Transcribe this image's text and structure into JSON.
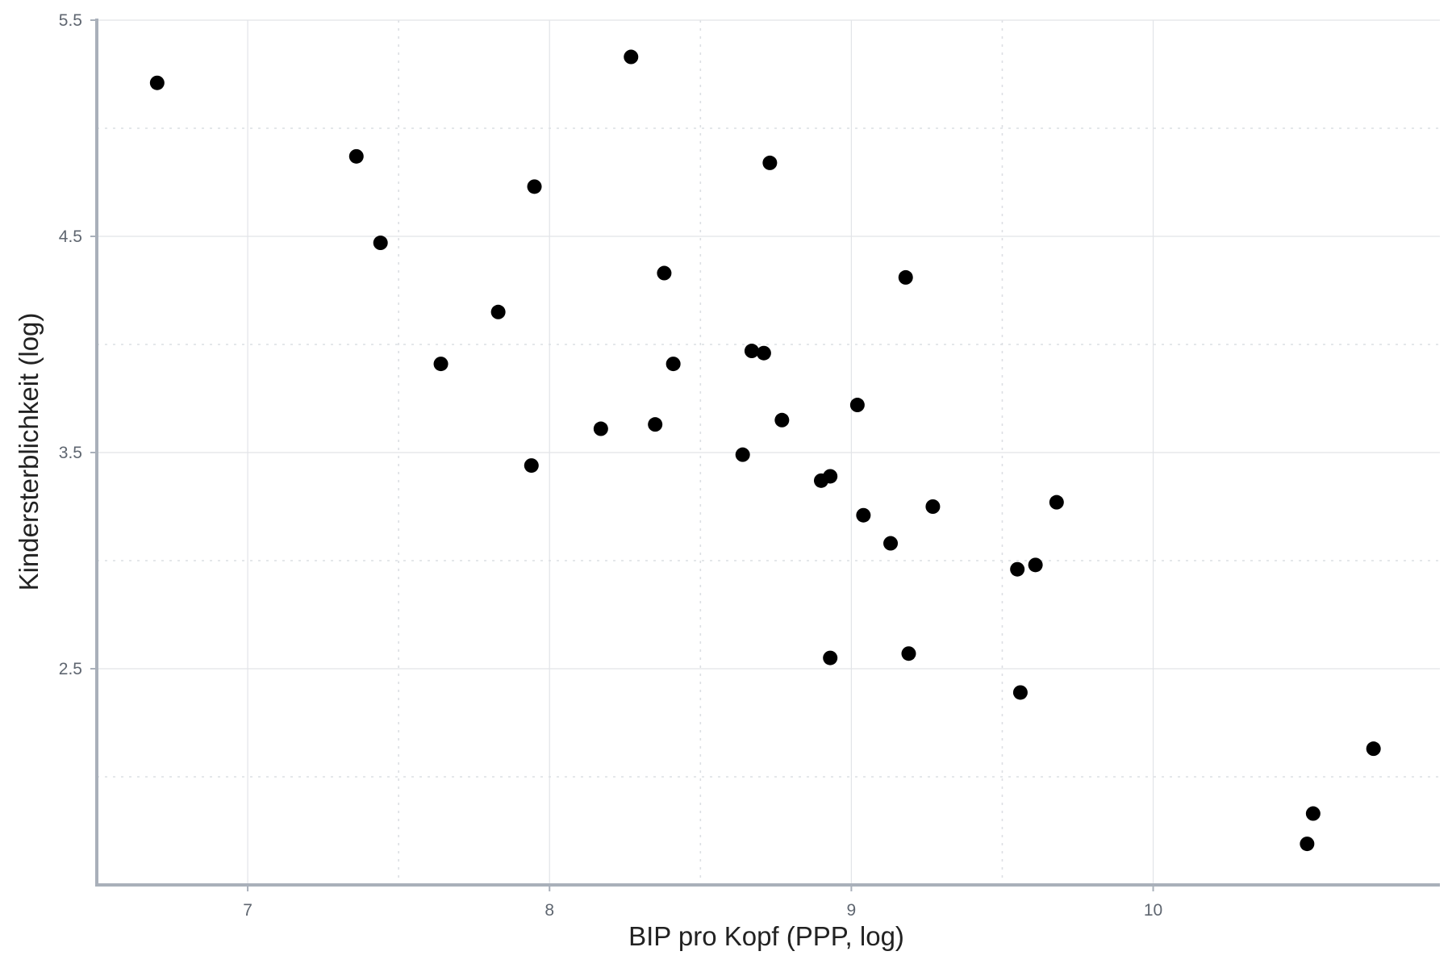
{
  "chart_data": {
    "type": "scatter",
    "title": "",
    "xlabel": "BIP pro Kopf (PPP, log)",
    "ylabel": "Kindersterblichkeit (log)",
    "xlim": [
      6.5,
      10.95
    ],
    "ylim": [
      1.5,
      5.5
    ],
    "xticks": [
      7,
      8,
      9,
      10
    ],
    "xtick_labels": [
      "7",
      "8",
      "9",
      "10"
    ],
    "yticks": [
      2.5,
      3.5,
      4.5,
      5.5
    ],
    "ytick_labels": [
      "2.5",
      "3.5",
      "4.5",
      "5.5"
    ],
    "minor_xticks": [
      7.5,
      8.5,
      9.5
    ],
    "minor_yticks": [
      2.0,
      3.0,
      4.0,
      5.0
    ],
    "grid": true,
    "legend": "none",
    "colors": {
      "points": "#000000",
      "axis": "#a9b0ba",
      "grid_major": "#e2e4e8",
      "grid_minor": "#dcdfe3"
    },
    "points": [
      {
        "x": 6.7,
        "y": 5.21
      },
      {
        "x": 7.36,
        "y": 4.87
      },
      {
        "x": 7.44,
        "y": 4.47
      },
      {
        "x": 7.64,
        "y": 3.91
      },
      {
        "x": 7.83,
        "y": 4.15
      },
      {
        "x": 7.94,
        "y": 3.44
      },
      {
        "x": 7.95,
        "y": 4.73
      },
      {
        "x": 8.17,
        "y": 3.61
      },
      {
        "x": 8.27,
        "y": 5.33
      },
      {
        "x": 8.35,
        "y": 3.63
      },
      {
        "x": 8.38,
        "y": 4.33
      },
      {
        "x": 8.41,
        "y": 3.91
      },
      {
        "x": 8.64,
        "y": 3.49
      },
      {
        "x": 8.67,
        "y": 3.97
      },
      {
        "x": 8.71,
        "y": 3.96
      },
      {
        "x": 8.73,
        "y": 4.84
      },
      {
        "x": 8.77,
        "y": 3.65
      },
      {
        "x": 8.9,
        "y": 3.37
      },
      {
        "x": 8.93,
        "y": 3.39
      },
      {
        "x": 8.93,
        "y": 2.55
      },
      {
        "x": 9.02,
        "y": 3.72
      },
      {
        "x": 9.04,
        "y": 3.21
      },
      {
        "x": 9.13,
        "y": 3.08
      },
      {
        "x": 9.18,
        "y": 4.31
      },
      {
        "x": 9.19,
        "y": 2.57
      },
      {
        "x": 9.27,
        "y": 3.25
      },
      {
        "x": 9.55,
        "y": 2.96
      },
      {
        "x": 9.56,
        "y": 2.39
      },
      {
        "x": 9.61,
        "y": 2.98
      },
      {
        "x": 9.68,
        "y": 3.27
      },
      {
        "x": 10.51,
        "y": 1.69
      },
      {
        "x": 10.53,
        "y": 1.83
      },
      {
        "x": 10.73,
        "y": 2.13
      }
    ]
  }
}
